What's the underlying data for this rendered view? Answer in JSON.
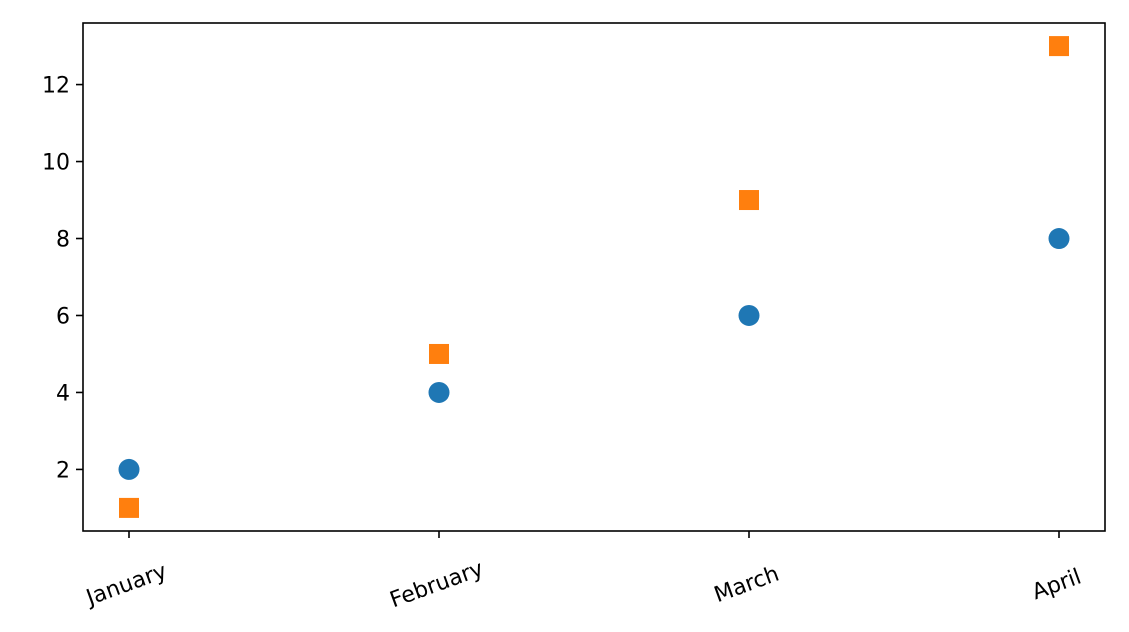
{
  "chart_data": {
    "type": "scatter",
    "categories": [
      "January",
      "February",
      "March",
      "April"
    ],
    "series": [
      {
        "marker": "circle",
        "color": "#1f77b4",
        "values": [
          2,
          4,
          6,
          8
        ]
      },
      {
        "marker": "square",
        "color": "#ff7f0e",
        "values": [
          1,
          5,
          9,
          13
        ]
      }
    ],
    "title": "",
    "xlabel": "",
    "ylabel": "",
    "ylim": [
      0.4,
      13.6
    ],
    "yticks": [
      2,
      4,
      6,
      8,
      10,
      12
    ],
    "xtick_rotation": "rotated 20 degrees",
    "grid": false,
    "legend": "none"
  }
}
